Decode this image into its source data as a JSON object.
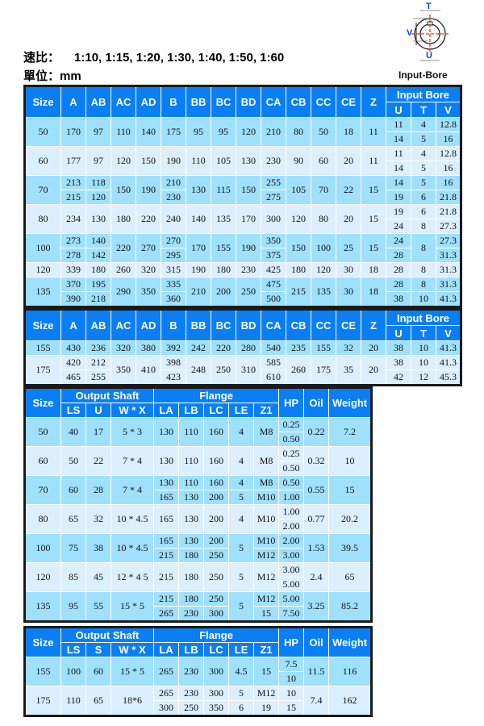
{
  "speed_ratio": {
    "label": "速比：",
    "value": "1:10, 1:15, 1:20, 1:30, 1:40, 1:50, 1:60"
  },
  "unit": {
    "label": "單位：",
    "value": "mm"
  },
  "diagram": {
    "caption": "Input-Bore",
    "labels": {
      "t": "T",
      "v": "V",
      "u": "U"
    },
    "colors": {
      "dim": "#1040e0",
      "center": "#e00000"
    }
  },
  "colors": {
    "header": "#0a7ff5",
    "row_a": "#9fe0fc",
    "row_b": "#dcefff"
  },
  "table1": {
    "header": [
      "Size",
      "A",
      "AB",
      "AC",
      "AD",
      "B",
      "BB",
      "BC",
      "BD",
      "CA",
      "CB",
      "CC",
      "CE",
      "Z",
      {
        "label": "Input Bore",
        "columns": [
          "U",
          "T",
          "V"
        ]
      }
    ],
    "rows": [
      {
        "cells": [
          "50",
          "170",
          "97",
          "110",
          "140",
          "175",
          "95",
          "95",
          "120",
          "210",
          "80",
          "50",
          "18",
          "11",
          [
            "11",
            "14"
          ],
          [
            "4",
            "5"
          ],
          [
            "12.8",
            "16"
          ]
        ]
      },
      {
        "cells": [
          "60",
          "177",
          "97",
          "120",
          "150",
          "190",
          "110",
          "105",
          "130",
          "230",
          "90",
          "60",
          "20",
          "11",
          [
            "11",
            "14"
          ],
          [
            "4",
            "5"
          ],
          [
            "12.8",
            "16"
          ]
        ]
      },
      {
        "cells": [
          "70",
          [
            "213",
            "215"
          ],
          [
            "118",
            "120"
          ],
          "150",
          "190",
          [
            "210",
            "230"
          ],
          "130",
          "115",
          "150",
          [
            "255",
            "275"
          ],
          "105",
          "70",
          "22",
          "15",
          [
            "14",
            "19"
          ],
          [
            "5",
            "6"
          ],
          [
            "16",
            "21.8"
          ]
        ]
      },
      {
        "cells": [
          "80",
          "234",
          "130",
          "180",
          "220",
          "240",
          "140",
          "135",
          "170",
          "300",
          "120",
          "80",
          "20",
          "15",
          [
            "19",
            "24"
          ],
          [
            "6",
            "8"
          ],
          [
            "21.8",
            "27.3"
          ]
        ]
      },
      {
        "cells": [
          "100",
          [
            "273",
            "278"
          ],
          [
            "140",
            "142"
          ],
          "220",
          "270",
          [
            "270",
            "295"
          ],
          "170",
          "155",
          "190",
          [
            "350",
            "375"
          ],
          "150",
          "100",
          "25",
          "15",
          [
            "24",
            "28"
          ],
          "8",
          [
            "27.3",
            "31.3"
          ]
        ]
      },
      {
        "cells": [
          "120",
          "339",
          "180",
          "260",
          "320",
          "315",
          "190",
          "180",
          "230",
          "425",
          "180",
          "120",
          "30",
          "18",
          "28",
          "8",
          "31.3"
        ]
      },
      {
        "cells": [
          "135",
          [
            "370",
            "390"
          ],
          [
            "195",
            "218"
          ],
          "290",
          "350",
          [
            "335",
            "360"
          ],
          "210",
          "200",
          "250",
          [
            "475",
            "500"
          ],
          "215",
          "135",
          "30",
          "18",
          [
            "28",
            "38"
          ],
          [
            "8",
            "10"
          ],
          [
            "31.3",
            "41.3"
          ]
        ]
      }
    ]
  },
  "table2": {
    "header": [
      "Size",
      "A",
      "AB",
      "AC",
      "AD",
      "B",
      "BB",
      "BC",
      "BD",
      "CA",
      "CB",
      "CC",
      "CE",
      "Z",
      {
        "label": "Input Bore",
        "columns": [
          "U",
          "T",
          "V"
        ]
      }
    ],
    "rows": [
      {
        "cells": [
          "155",
          "430",
          "236",
          "320",
          "380",
          "392",
          "242",
          "220",
          "280",
          "540",
          "235",
          "155",
          "32",
          "20",
          "38",
          "10",
          "41.3"
        ]
      },
      {
        "cells": [
          "175",
          [
            "420",
            "465"
          ],
          [
            "212",
            "255"
          ],
          "350",
          "410",
          [
            "398",
            "423"
          ],
          "248",
          "250",
          "310",
          [
            "585",
            "610"
          ],
          "260",
          "175",
          "35",
          "20",
          [
            "38",
            "42"
          ],
          [
            "10",
            "12"
          ],
          [
            "41.3",
            "45.3"
          ]
        ]
      }
    ]
  },
  "table3": {
    "header": [
      "Size",
      {
        "label": "Output Shaft",
        "columns": [
          "LS",
          "U",
          "W * X"
        ]
      },
      {
        "label": "Flange",
        "columns": [
          "LA",
          "LB",
          "LC",
          "LE",
          "Z1"
        ]
      },
      "HP",
      "Oil",
      "Weight"
    ],
    "rows": [
      {
        "cells": [
          "50",
          "40",
          "17",
          "5 * 3",
          "130",
          "110",
          "160",
          "4",
          "M8",
          [
            "0.25",
            "0.50"
          ],
          "0.22",
          "7.2"
        ]
      },
      {
        "cells": [
          "60",
          "50",
          "22",
          "7 * 4",
          "130",
          "110",
          "160",
          "4",
          "M8",
          [
            "0.25",
            "0.50"
          ],
          "0.32",
          "10"
        ]
      },
      {
        "cells": [
          "70",
          "60",
          "28",
          "7 * 4",
          [
            "130",
            "165"
          ],
          [
            "110",
            "130"
          ],
          [
            "160",
            "200"
          ],
          [
            "4",
            "5"
          ],
          [
            "M8",
            "M10"
          ],
          [
            "0.50",
            "1.00"
          ],
          "0.55",
          "15"
        ]
      },
      {
        "cells": [
          "80",
          "65",
          "32",
          "10 * 4.5",
          "165",
          "130",
          "200",
          "4",
          "M10",
          [
            "1.00",
            "2.00"
          ],
          "0.77",
          "20.2"
        ]
      },
      {
        "cells": [
          "100",
          "75",
          "38",
          "10 * 4.5",
          [
            "165",
            "215"
          ],
          [
            "130",
            "180"
          ],
          [
            "200",
            "250"
          ],
          "5",
          [
            "M10",
            "M12"
          ],
          [
            "2.00",
            "3.00"
          ],
          "1.53",
          "39.5"
        ]
      },
      {
        "cells": [
          "120",
          "85",
          "45",
          "12 * 4 5",
          "215",
          "180",
          "250",
          "5",
          "M12",
          [
            "3.00",
            "5.00"
          ],
          "2.4",
          "65"
        ]
      },
      {
        "cells": [
          "135",
          "95",
          "55",
          "15 * 5",
          [
            "215",
            "265"
          ],
          [
            "180",
            "230"
          ],
          [
            "250",
            "300"
          ],
          "5",
          [
            "M12",
            "15"
          ],
          [
            "5.00",
            "7.50"
          ],
          "3.25",
          "85.2"
        ]
      }
    ]
  },
  "table4": {
    "header": [
      "Size",
      {
        "label": "Output Shaft",
        "columns": [
          "LS",
          "S",
          "W * X"
        ]
      },
      {
        "label": "Flange",
        "columns": [
          "LA",
          "LB",
          "LC",
          "LE",
          "Z1"
        ]
      },
      "HP",
      "Oil",
      "Weight"
    ],
    "rows": [
      {
        "cells": [
          "155",
          "100",
          "60",
          "15 * 5",
          "265",
          "230",
          "300",
          "4.5",
          "15",
          [
            "7.5",
            "10"
          ],
          "11.5",
          "116"
        ]
      },
      {
        "cells": [
          "175",
          "110",
          "65",
          "18*6",
          [
            "265",
            "300"
          ],
          [
            "230",
            "250"
          ],
          [
            "300",
            "350"
          ],
          [
            "5",
            "6"
          ],
          [
            "M12",
            "19"
          ],
          [
            "10",
            "15"
          ],
          "7.4",
          "162"
        ]
      }
    ]
  }
}
